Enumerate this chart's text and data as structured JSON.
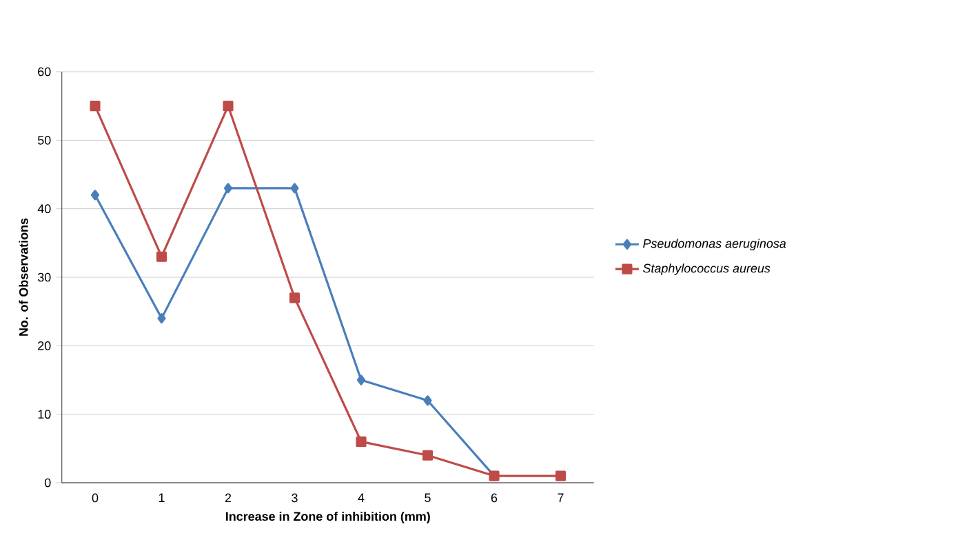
{
  "chart_data": {
    "type": "line",
    "xlabel": "Increase in Zone of inhibition (mm)",
    "ylabel": "No. of Observations",
    "categories": [
      "0",
      "1",
      "2",
      "3",
      "4",
      "5",
      "6",
      "7"
    ],
    "series": [
      {
        "name": "Pseudomonas aeruginosa",
        "color": "#4a7ebb",
        "marker": "diamond",
        "values": [
          42,
          24,
          43,
          43,
          15,
          12,
          1,
          null
        ]
      },
      {
        "name": "Staphylococcus aureus",
        "color": "#be4b48",
        "marker": "square",
        "values": [
          55,
          33,
          55,
          27,
          6,
          4,
          1,
          1
        ]
      }
    ],
    "ylim": [
      0,
      60
    ],
    "yticks": [
      0,
      10,
      20,
      30,
      40,
      50,
      60
    ],
    "grid": "y",
    "legend": "right",
    "line_style": "solid"
  }
}
